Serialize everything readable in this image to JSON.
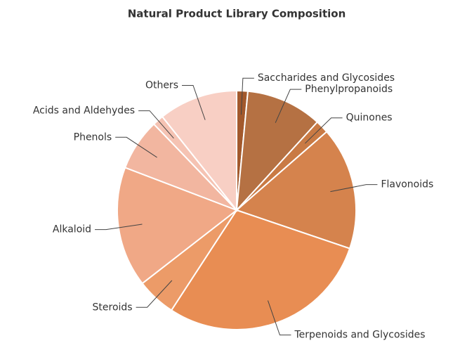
{
  "chart_data": {
    "type": "pie",
    "title": "Natural Product Library Composition",
    "categories": [
      "Saccharides and Glycosides",
      "Phenylpropanoids",
      "Quinones",
      "Flavonoids",
      "Terpenoids and Glycosides",
      "Steroids",
      "Alkaloid",
      "Phenols",
      "Acids and Aldehydes",
      "Others"
    ],
    "values": [
      1.5,
      10.3,
      1.8,
      16.6,
      29,
      5.3,
      16.3,
      7,
      1.5,
      10.7
    ],
    "colors": [
      "#a3592c",
      "#b57143",
      "#c97a44",
      "#d5834d",
      "#e88d53",
      "#ec9b68",
      "#f0a886",
      "#f2b6a0",
      "#f5c3b3",
      "#f8cfc4"
    ]
  }
}
